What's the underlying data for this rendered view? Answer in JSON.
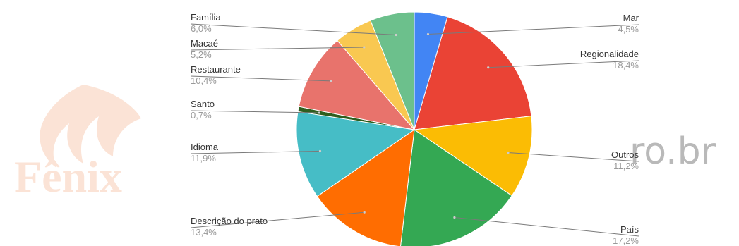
{
  "watermark": {
    "logo_text": "Fênix",
    "url_fragment": "ro.br",
    "logo_color": "#f7c3a6"
  },
  "chart_data": {
    "type": "pie",
    "title": "",
    "start_angle_deg": 0,
    "direction": "clockwise",
    "series": [
      {
        "label": "Mar",
        "value_label": "4,5%",
        "value": 4.5,
        "color": "#4285f4"
      },
      {
        "label": "Regionalidade",
        "value_label": "18,4%",
        "value": 18.4,
        "color": "#ea4335"
      },
      {
        "label": "Outros",
        "value_label": "11,2%",
        "value": 11.2,
        "color": "#fbbc04"
      },
      {
        "label": "País",
        "value_label": "17,2%",
        "value": 17.2,
        "color": "#34a853"
      },
      {
        "label": "Descrição do prato",
        "value_label": "13,4%",
        "value": 13.4,
        "color": "#ff6d01"
      },
      {
        "label": "Idioma",
        "value_label": "11,9%",
        "value": 11.9,
        "color": "#46bdc6"
      },
      {
        "label": "Santo",
        "value_label": "0,7%",
        "value": 0.7,
        "color": "#2e5e1e"
      },
      {
        "label": "Restaurante",
        "value_label": "10,4%",
        "value": 10.4,
        "color": "#e8736c"
      },
      {
        "label": "Macaé",
        "value_label": "5,2%",
        "value": 5.2,
        "color": "#f9c851"
      },
      {
        "label": "Família",
        "value_label": "6,0%",
        "value": 6.0,
        "color": "#6cc08c"
      }
    ],
    "legend": "none",
    "labels_position": "outside-with-leader-lines"
  }
}
